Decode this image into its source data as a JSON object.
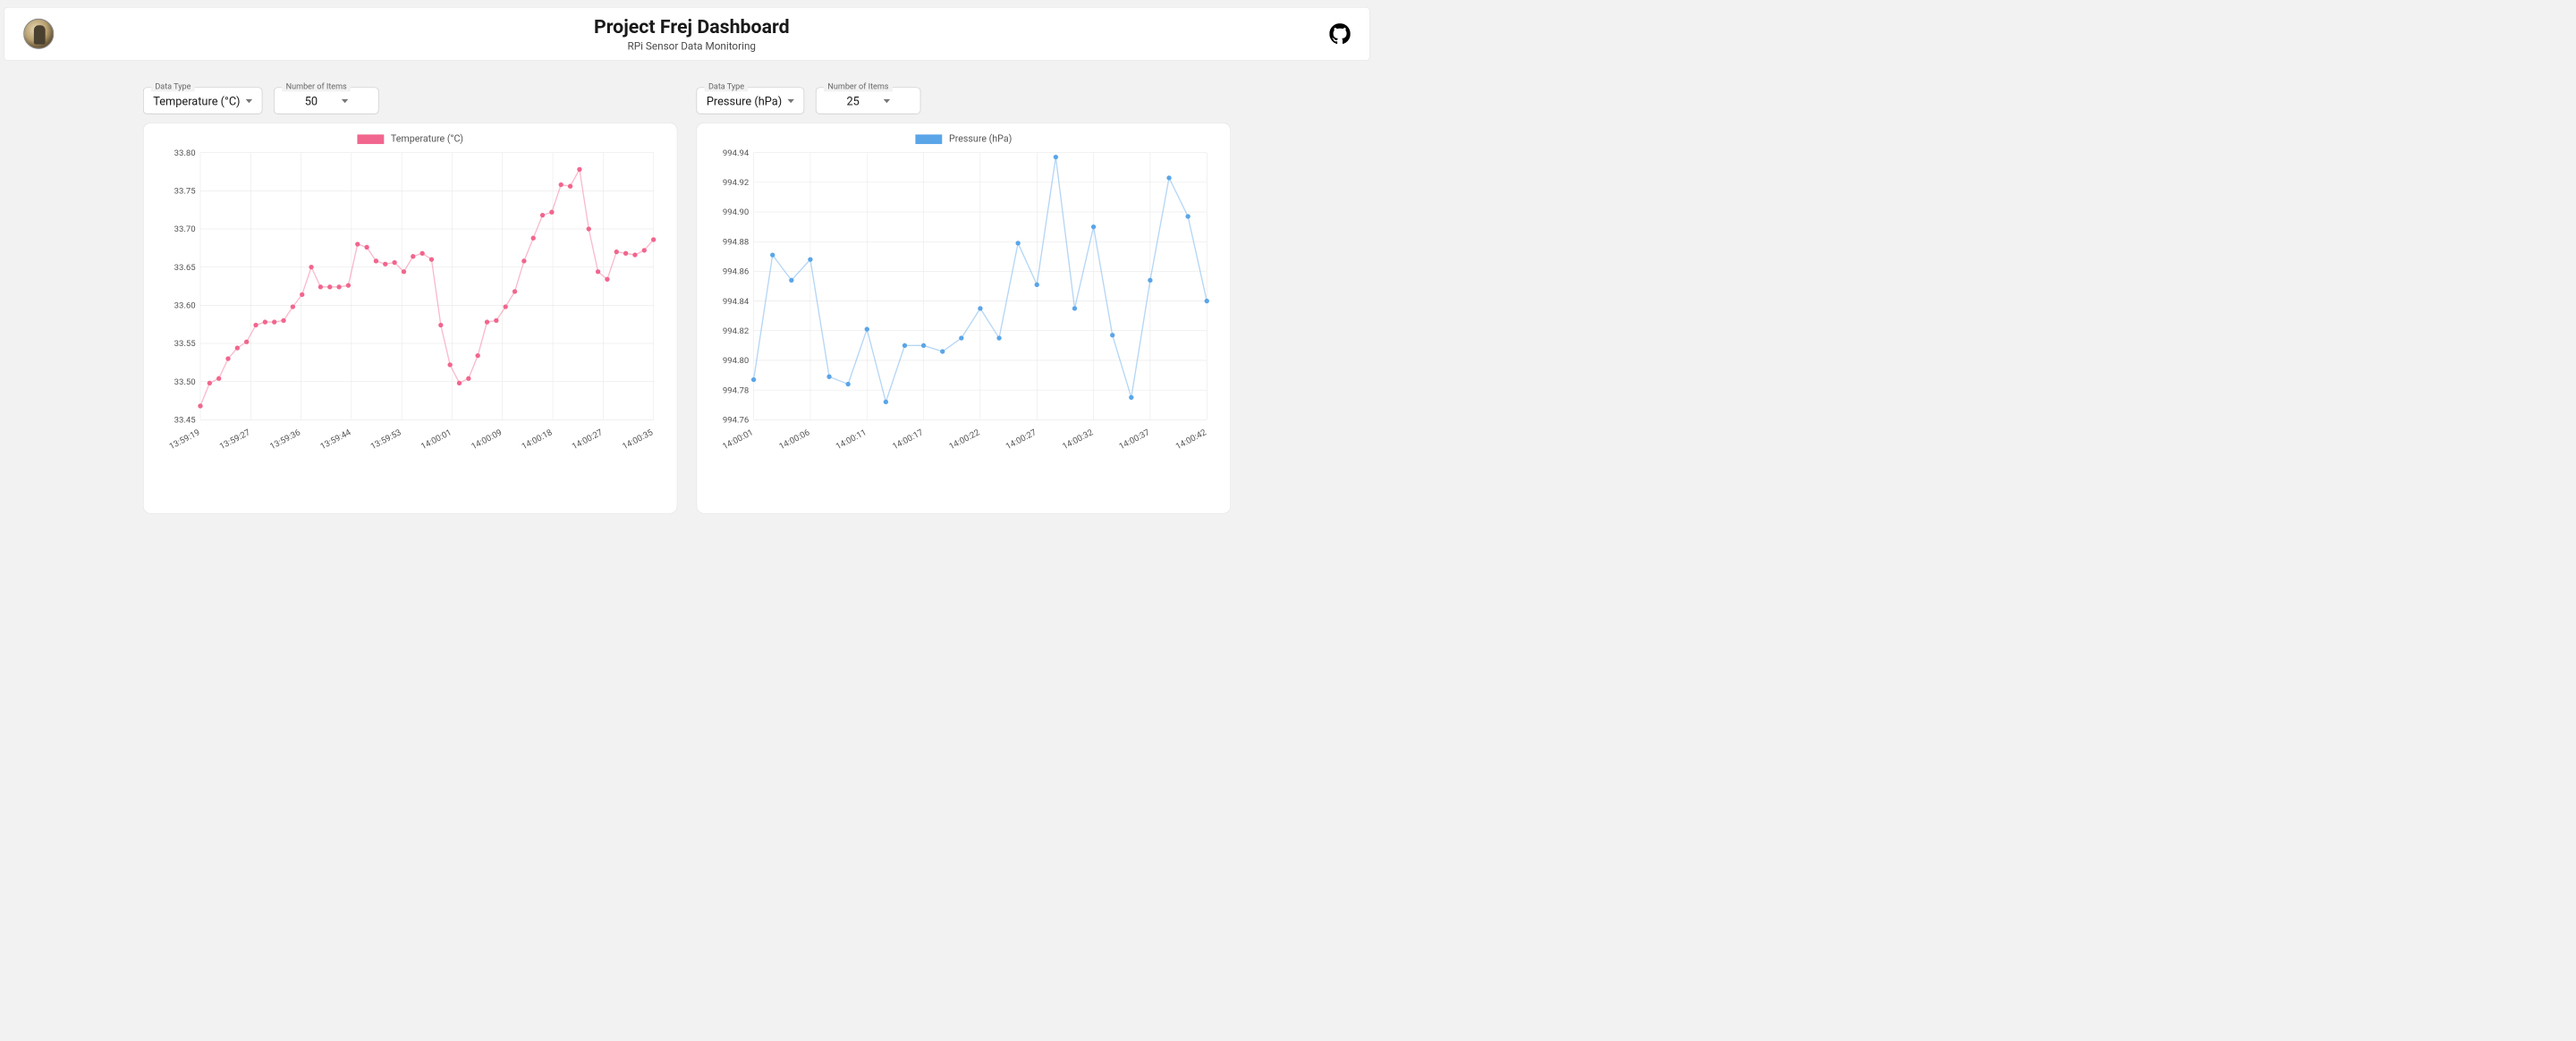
{
  "header": {
    "title": "Project Frej Dashboard",
    "subtitle": "RPi Sensor Data Monitoring"
  },
  "panels": [
    {
      "controls": {
        "dataTypeLabel": "Data Type",
        "dataTypeValue": "Temperature (°C)",
        "itemsLabel": "Number of Items",
        "itemsValue": "50"
      },
      "chart": {
        "type": "line",
        "legend": "Temperature (°C)",
        "series_color": "#f1668e",
        "series_line_opacity": 0.45,
        "point_radius": 5,
        "background_color": "#ffffff",
        "grid_color": "#e6e6e6",
        "axis_fontsize": 18,
        "ylim": [
          33.45,
          33.8
        ],
        "ytick_step": 0.05,
        "ytick_labels": [
          "33.45",
          "33.50",
          "33.55",
          "33.60",
          "33.65",
          "33.70",
          "33.75",
          "33.80"
        ],
        "x_labels": [
          "13:59:19",
          "13:59:27",
          "13:59:36",
          "13:59:44",
          "13:59:53",
          "14:00:01",
          "14:00:09",
          "14:00:18",
          "14:00:27",
          "14:00:35"
        ],
        "values": [
          33.468,
          33.498,
          33.504,
          33.53,
          33.544,
          33.552,
          33.574,
          33.578,
          33.578,
          33.58,
          33.598,
          33.614,
          33.65,
          33.624,
          33.624,
          33.624,
          33.626,
          33.68,
          33.676,
          33.658,
          33.654,
          33.656,
          33.644,
          33.664,
          33.668,
          33.66,
          33.574,
          33.522,
          33.498,
          33.504,
          33.534,
          33.578,
          33.58,
          33.598,
          33.618,
          33.658,
          33.688,
          33.718,
          33.722,
          33.758,
          33.756,
          33.778,
          33.7,
          33.644,
          33.634,
          33.67,
          33.668,
          33.666,
          33.672,
          33.686
        ]
      }
    },
    {
      "controls": {
        "dataTypeLabel": "Data Type",
        "dataTypeValue": "Pressure (hPa)",
        "itemsLabel": "Number of Items",
        "itemsValue": "25"
      },
      "chart": {
        "type": "line",
        "legend": "Pressure (hPa)",
        "series_color": "#5aa5e8",
        "series_line_opacity": 0.45,
        "point_radius": 5,
        "background_color": "#ffffff",
        "grid_color": "#e6e6e6",
        "axis_fontsize": 18,
        "ylim": [
          994.76,
          994.94
        ],
        "ytick_step": 0.02,
        "ytick_labels": [
          "994.76",
          "994.78",
          "994.80",
          "994.82",
          "994.84",
          "994.86",
          "994.88",
          "994.90",
          "994.92",
          "994.94"
        ],
        "x_labels": [
          "14:00:01",
          "14:00:06",
          "14:00:11",
          "14:00:17",
          "14:00:22",
          "14:00:27",
          "14:00:32",
          "14:00:37",
          "14:00:42"
        ],
        "values": [
          994.787,
          994.871,
          994.854,
          994.868,
          994.789,
          994.784,
          994.821,
          994.772,
          994.81,
          994.81,
          994.806,
          994.815,
          994.835,
          994.815,
          994.879,
          994.851,
          994.937,
          994.835,
          994.89,
          994.817,
          994.775,
          994.854,
          994.923,
          994.897,
          994.84
        ]
      }
    }
  ]
}
